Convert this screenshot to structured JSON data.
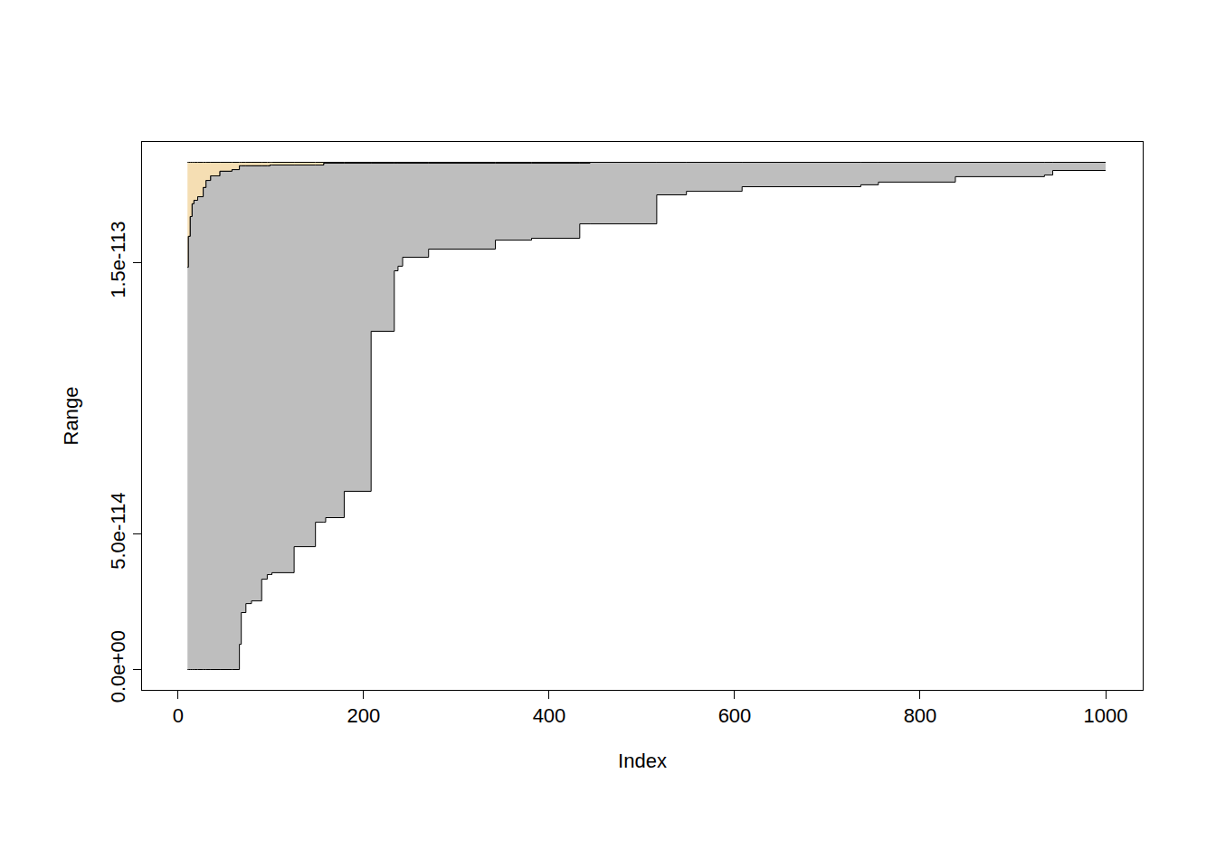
{
  "chart_data": {
    "type": "range",
    "x_label": "Index",
    "y_label": "Range",
    "xlim": [
      -39,
      1040
    ],
    "ylim": [
      -7.5e-115,
      1.945e-113
    ],
    "xticks": [
      0,
      200,
      400,
      600,
      800,
      1000
    ],
    "yticks": [
      {
        "value": 0,
        "label": "0.0e+00"
      },
      {
        "value": 5e-114,
        "label": "5.0e-114"
      },
      {
        "value": 1.5e-113,
        "label": "1.5e-113"
      }
    ],
    "grid": false,
    "series": [
      {
        "color": "#f5deb3",
        "x": [
          10,
          11,
          13,
          15,
          17,
          21,
          27,
          30,
          35,
          45,
          58,
          66,
          68,
          73,
          79,
          90,
          96,
          99,
          101,
          125,
          148,
          157,
          159,
          179,
          208,
          233,
          237,
          242,
          270,
          342,
          381,
          433,
          444,
          516,
          548,
          608,
          736,
          755,
          838,
          934,
          943,
          1000
        ],
        "low": [
          1.483e-113,
          1.597e-113,
          1.67e-113,
          1.717e-113,
          1.73e-113,
          1.743e-113,
          1.777e-113,
          1.803e-113,
          1.82e-113,
          1.837e-113,
          1.843e-113,
          1.857e-113,
          1.857e-113,
          1.857e-113,
          1.857e-113,
          1.857e-113,
          1.857e-113,
          1.86e-113,
          1.86e-113,
          1.86e-113,
          1.86e-113,
          1.867e-113,
          1.867e-113,
          1.867e-113,
          1.867e-113,
          1.867e-113,
          1.867e-113,
          1.867e-113,
          1.867e-113,
          1.867e-113,
          1.867e-113,
          1.867e-113,
          1.87e-113,
          1.87e-113,
          1.87e-113,
          1.87e-113,
          1.87e-113,
          1.87e-113,
          1.87e-113,
          1.87e-113,
          1.87e-113,
          1.87e-113
        ],
        "high": [
          1.87e-113,
          1.87e-113,
          1.87e-113,
          1.87e-113,
          1.87e-113,
          1.87e-113,
          1.87e-113,
          1.87e-113,
          1.87e-113,
          1.87e-113,
          1.87e-113,
          1.87e-113,
          1.87e-113,
          1.87e-113,
          1.87e-113,
          1.87e-113,
          1.87e-113,
          1.87e-113,
          1.87e-113,
          1.87e-113,
          1.87e-113,
          1.87e-113,
          1.87e-113,
          1.87e-113,
          1.87e-113,
          1.87e-113,
          1.87e-113,
          1.87e-113,
          1.87e-113,
          1.87e-113,
          1.87e-113,
          1.87e-113,
          1.87e-113,
          1.87e-113,
          1.87e-113,
          1.87e-113,
          1.87e-113,
          1.87e-113,
          1.87e-113,
          1.87e-113,
          1.87e-113,
          1.87e-113
        ]
      },
      {
        "color": "#bebebe",
        "x": [
          10,
          11,
          13,
          15,
          17,
          21,
          27,
          30,
          35,
          45,
          58,
          66,
          68,
          73,
          79,
          90,
          96,
          99,
          101,
          125,
          148,
          157,
          159,
          179,
          208,
          233,
          237,
          242,
          270,
          342,
          381,
          433,
          444,
          516,
          548,
          608,
          736,
          755,
          838,
          934,
          943,
          1000
        ],
        "low": [
          0,
          0,
          0,
          0,
          0,
          0,
          0,
          0,
          0,
          0,
          0,
          9.3e-115,
          2.1e-114,
          2.43e-114,
          2.53e-114,
          3.33e-114,
          3.5e-114,
          3.5e-114,
          3.57e-114,
          4.53e-114,
          5.43e-114,
          5.43e-114,
          5.6e-114,
          6.57e-114,
          1.247e-113,
          1.47e-113,
          1.487e-113,
          1.52e-113,
          1.55e-113,
          1.583e-113,
          1.59e-113,
          1.643e-113,
          1.643e-113,
          1.75e-113,
          1.763e-113,
          1.78e-113,
          1.787e-113,
          1.797e-113,
          1.817e-113,
          1.823e-113,
          1.84e-113,
          1.84e-113
        ],
        "high": [
          1.483e-113,
          1.597e-113,
          1.67e-113,
          1.717e-113,
          1.73e-113,
          1.743e-113,
          1.777e-113,
          1.803e-113,
          1.82e-113,
          1.837e-113,
          1.843e-113,
          1.857e-113,
          1.857e-113,
          1.857e-113,
          1.857e-113,
          1.857e-113,
          1.857e-113,
          1.86e-113,
          1.86e-113,
          1.86e-113,
          1.86e-113,
          1.867e-113,
          1.867e-113,
          1.867e-113,
          1.867e-113,
          1.867e-113,
          1.867e-113,
          1.867e-113,
          1.867e-113,
          1.867e-113,
          1.867e-113,
          1.867e-113,
          1.87e-113,
          1.87e-113,
          1.87e-113,
          1.87e-113,
          1.87e-113,
          1.87e-113,
          1.87e-113,
          1.87e-113,
          1.87e-113,
          1.87e-113
        ]
      }
    ]
  }
}
